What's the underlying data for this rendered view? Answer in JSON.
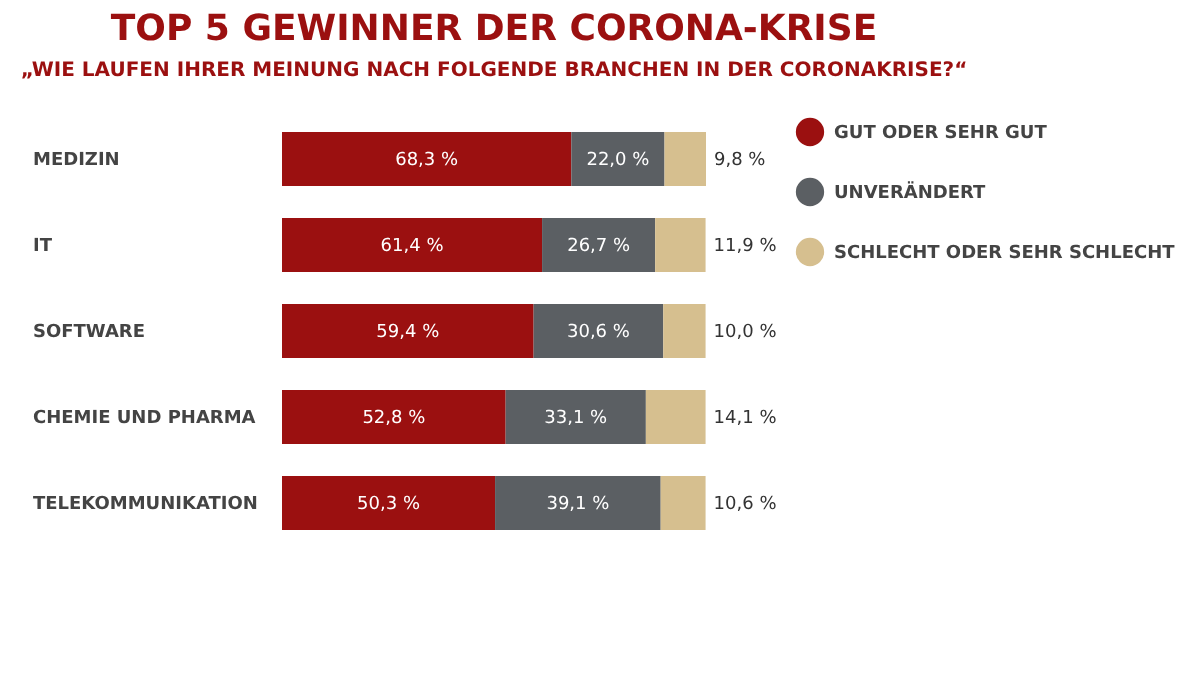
{
  "chart_data": {
    "type": "bar",
    "orientation": "horizontal",
    "stacked": true,
    "title": "TOP 5 GEWINNER DER CORONA-KRISE",
    "subtitle": "„WIE LAUFEN IHRER MEINUNG NACH FOLGENDE BRANCHEN IN DER CORONAKRISE?“",
    "categories": [
      "MEDIZIN",
      "IT",
      "SOFTWARE",
      "CHEMIE UND PHARMA",
      "TELEKOMMUNIKATION"
    ],
    "legend": "right",
    "series": [
      {
        "name": "GUT ODER SEHR GUT",
        "color": "#9b1010",
        "values": [
          68.3,
          61.4,
          59.4,
          52.8,
          50.3
        ],
        "value_labels": [
          "68,3 %",
          "61,4 %",
          "59,4 %",
          "52,8 %",
          "50,3 %"
        ]
      },
      {
        "name": "UNVERÄNDERT",
        "color": "#5b5f63",
        "values": [
          22.0,
          26.7,
          30.6,
          33.1,
          39.1
        ],
        "value_labels": [
          "22,0 %",
          "26,7 %",
          "30,6 %",
          "33,1 %",
          "39,1 %"
        ]
      },
      {
        "name": "SCHLECHT ODER SEHR SCHLECHT",
        "color": "#d6bf8f",
        "values": [
          9.8,
          11.9,
          10.0,
          14.1,
          10.6
        ],
        "value_labels": [
          "9,8 %",
          "11,9 %",
          "10,0 %",
          "14,1 %",
          "10,6 %"
        ]
      }
    ]
  }
}
